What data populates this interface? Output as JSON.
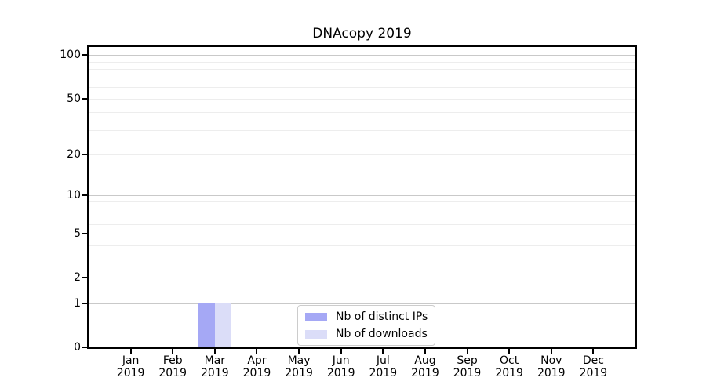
{
  "title": "DNAcopy 2019",
  "chart_data": {
    "type": "bar",
    "title": "DNAcopy 2019",
    "categories": [
      "Jan",
      "Feb",
      "Mar",
      "Apr",
      "May",
      "Jun",
      "Jul",
      "Aug",
      "Sep",
      "Oct",
      "Nov",
      "Dec"
    ],
    "year_label": "2019",
    "series": [
      {
        "name": "Nb of distinct IPs",
        "color": "#a5a8f5",
        "values": [
          0,
          0,
          1,
          0,
          0,
          0,
          0,
          0,
          0,
          0,
          0,
          0
        ]
      },
      {
        "name": "Nb of downloads",
        "color": "#dbddf8",
        "values": [
          0,
          0,
          1,
          0,
          0,
          0,
          0,
          0,
          0,
          0,
          0,
          0
        ]
      }
    ],
    "xlabel": "",
    "ylabel": "",
    "yticks": [
      0,
      1,
      2,
      5,
      10,
      20,
      50,
      100
    ],
    "ylim": [
      0,
      114
    ],
    "y_scale": "log10(1+y)",
    "grid": "horizontal",
    "grid_major": [
      1,
      10,
      100
    ],
    "grid_minor": [
      2,
      3,
      4,
      5,
      6,
      7,
      8,
      9,
      20,
      30,
      40,
      50,
      60,
      70,
      80,
      90
    ],
    "legend_position": "inside-bottom-center"
  },
  "colors": {
    "grid_major": "#c9c9c9",
    "grid_minor": "#ededed",
    "spine": "#000000",
    "legend_border": "#cccccc",
    "background": "#ffffff"
  }
}
